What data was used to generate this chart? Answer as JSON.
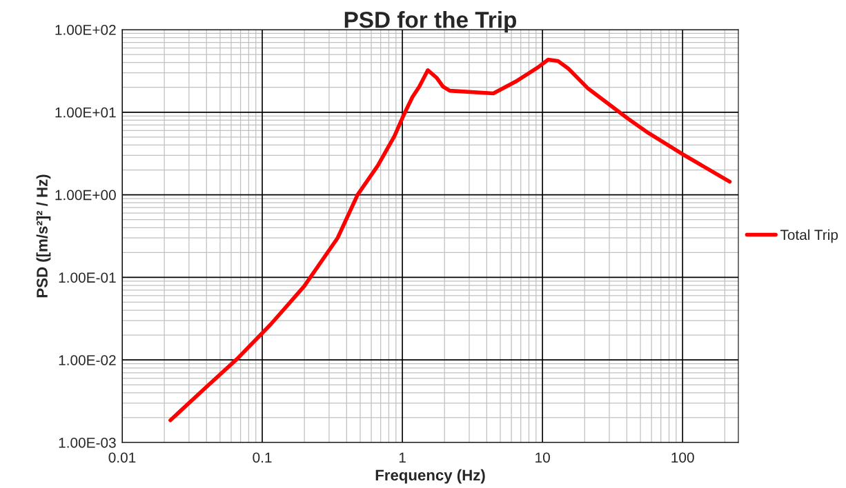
{
  "chart_data": {
    "type": "line",
    "title": "PSD for the Trip",
    "xlabel": "Frequency (Hz)",
    "ylabel": "PSD ([m/s²]² / Hz)",
    "log": "xy",
    "xlim": [
      0.01,
      250
    ],
    "ylim": [
      0.001,
      100
    ],
    "xticks": [
      {
        "value": 0.01,
        "label": "0.01"
      },
      {
        "value": 0.1,
        "label": "0.1"
      },
      {
        "value": 1,
        "label": "1"
      },
      {
        "value": 10,
        "label": "10"
      },
      {
        "value": 100,
        "label": "100"
      }
    ],
    "yticks": [
      {
        "value": 0.001,
        "label": "1.00E-03"
      },
      {
        "value": 0.01,
        "label": "1.00E-02"
      },
      {
        "value": 0.1,
        "label": "1.00E-01"
      },
      {
        "value": 1,
        "label": "1.00E+00"
      },
      {
        "value": 10,
        "label": "1.00E+01"
      },
      {
        "value": 100,
        "label": "1.00E+02"
      }
    ],
    "grid": true,
    "legend": "right",
    "marker": "none",
    "line_style": "solid",
    "series": [
      {
        "name": "Total Trip",
        "color": "#ff0000",
        "x": [
          0.0221,
          0.0382,
          0.0662,
          0.115,
          0.199,
          0.345,
          0.479,
          0.666,
          0.876,
          1.03,
          1.18,
          1.32,
          1.52,
          1.75,
          1.95,
          2.18,
          4.46,
          6.41,
          9.3,
          10.97,
          12.9,
          15.3,
          21.2,
          41,
          57,
          100,
          217
        ],
        "values": [
          0.00186,
          0.0044,
          0.0103,
          0.027,
          0.078,
          0.3,
          1.0,
          2.24,
          5.1,
          9.5,
          15.3,
          20.4,
          32.3,
          26.3,
          20.4,
          18.2,
          16.9,
          23.4,
          35,
          43.3,
          41.7,
          33.8,
          19.3,
          8.3,
          5.6,
          3.1,
          1.44
        ]
      }
    ]
  }
}
